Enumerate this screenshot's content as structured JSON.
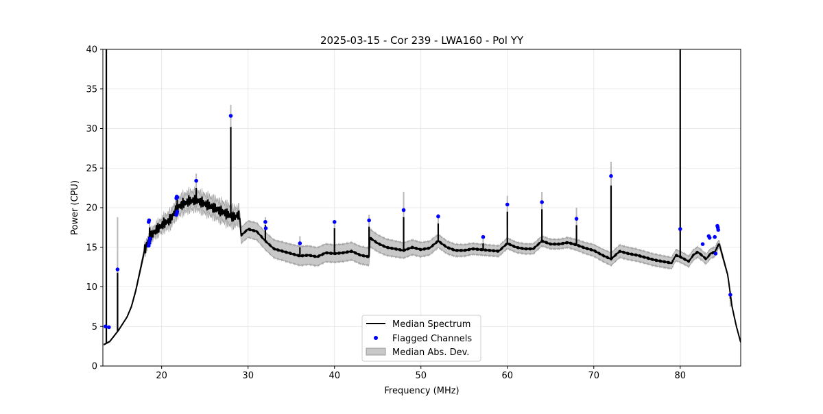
{
  "chart_data": {
    "type": "line",
    "title": "2025-03-15 - Cor 239 - LWA160 - Pol YY",
    "xlabel": "Frequency (MHz)",
    "ylabel": "Power (CPU)",
    "xlim": [
      13.2,
      87.0
    ],
    "ylim": [
      0,
      40
    ],
    "xticks": [
      20,
      30,
      40,
      50,
      60,
      70,
      80
    ],
    "yticks": [
      0,
      5,
      10,
      15,
      20,
      25,
      30,
      35,
      40
    ],
    "grid": true,
    "legend_position": "lower-center",
    "legend": {
      "median_label": "Median Spectrum",
      "flagged_label": "Flagged Channels",
      "mad_label": "Median Abs. Dev."
    },
    "colors": {
      "median": "#000000",
      "flagged": "#0000ff",
      "mad_fill": "#c8c8c8",
      "mad_edge": "#999999"
    },
    "baseline": {
      "x": [
        13.3,
        14.0,
        15.0,
        16.0,
        16.5,
        17.0,
        17.5,
        18.0,
        18.5,
        19.0,
        19.5,
        20.0,
        20.5,
        21.0,
        21.5,
        22.0,
        23.0,
        24.0,
        25.0,
        26.0,
        27.0,
        27.9,
        28.5,
        29.0,
        29.2,
        30.0,
        31.0,
        32.0,
        33.0,
        34.0,
        35.0,
        36.0,
        37.0,
        38.0,
        39.0,
        40.0,
        41.0,
        42.0,
        43.0,
        44.0,
        44.1,
        45.0,
        46.0,
        47.0,
        48.0,
        49.0,
        50.0,
        51.0,
        52.0,
        53.0,
        54.0,
        55.0,
        56.0,
        57.0,
        58.0,
        59.0,
        60.0,
        61.0,
        62.0,
        63.0,
        64.0,
        65.0,
        66.0,
        67.0,
        68.0,
        69.0,
        70.0,
        71.0,
        72.0,
        73.0,
        74.0,
        75.0,
        76.0,
        77.0,
        78.0,
        79.0,
        79.5,
        80.0,
        80.5,
        81.0,
        81.5,
        82.0,
        82.5,
        83.0,
        83.5,
        84.0,
        84.5,
        85.0,
        85.5,
        86.0,
        86.5,
        87.0
      ],
      "y": [
        2.7,
        3.1,
        4.5,
        6.2,
        7.5,
        9.5,
        12.0,
        14.5,
        16.0,
        16.8,
        17.3,
        17.8,
        18.2,
        18.5,
        19.5,
        20.2,
        20.8,
        21.0,
        20.5,
        20.0,
        19.5,
        19.0,
        18.8,
        19.2,
        16.5,
        17.3,
        17.0,
        15.8,
        14.8,
        14.5,
        14.2,
        13.9,
        14.0,
        13.8,
        14.3,
        14.2,
        14.3,
        14.5,
        14.0,
        13.8,
        16.2,
        15.5,
        15.0,
        14.8,
        14.6,
        15.0,
        14.7,
        14.9,
        15.8,
        15.0,
        14.6,
        14.6,
        14.8,
        14.7,
        14.6,
        14.5,
        15.5,
        15.0,
        14.8,
        14.8,
        15.8,
        15.4,
        15.4,
        15.6,
        15.3,
        14.9,
        14.6,
        14.0,
        13.5,
        14.5,
        14.2,
        14.0,
        13.7,
        13.4,
        13.2,
        13.0,
        14.0,
        13.8,
        13.5,
        13.2,
        14.0,
        14.4,
        14.0,
        13.5,
        14.2,
        14.4,
        15.5,
        13.5,
        11.5,
        7.5,
        5.0,
        3.0
      ]
    },
    "mad_halfwidth": [
      [
        16.0,
        0.1
      ],
      [
        18.0,
        0.5
      ],
      [
        20.0,
        0.8
      ],
      [
        22.0,
        1.1
      ],
      [
        28.0,
        1.2
      ],
      [
        29.0,
        1.0
      ],
      [
        32.0,
        1.1
      ],
      [
        36.0,
        1.2
      ],
      [
        40.0,
        1.1
      ],
      [
        44.0,
        1.1
      ],
      [
        56.0,
        0.7
      ],
      [
        66.0,
        0.6
      ],
      [
        72.0,
        0.8
      ],
      [
        80.0,
        0.7
      ],
      [
        84.0,
        0.6
      ],
      [
        86.0,
        0.1
      ]
    ],
    "spikes": [
      {
        "x": 13.6,
        "peak": 40.0,
        "mad": 0.0
      },
      {
        "x": 14.9,
        "peak": 11.8,
        "mad": 7.0
      },
      {
        "x": 18.6,
        "peak": 17.5,
        "mad": 0.5
      },
      {
        "x": 21.8,
        "peak": 21.0,
        "mad": 0.5
      },
      {
        "x": 24.0,
        "peak": 22.5,
        "mad": 1.8
      },
      {
        "x": 28.0,
        "peak": 30.2,
        "mad": 2.8
      },
      {
        "x": 32.0,
        "peak": 17.8,
        "mad": 1.0
      },
      {
        "x": 36.0,
        "peak": 15.0,
        "mad": 1.4
      },
      {
        "x": 40.0,
        "peak": 17.4,
        "mad": 1.0
      },
      {
        "x": 44.0,
        "peak": 17.6,
        "mad": 1.5
      },
      {
        "x": 48.0,
        "peak": 18.8,
        "mad": 3.2
      },
      {
        "x": 52.0,
        "peak": 18.0,
        "mad": 1.2
      },
      {
        "x": 57.2,
        "peak": 15.5,
        "mad": 0.8
      },
      {
        "x": 60.0,
        "peak": 19.5,
        "mad": 2.0
      },
      {
        "x": 64.0,
        "peak": 19.8,
        "mad": 2.2
      },
      {
        "x": 68.0,
        "peak": 17.8,
        "mad": 2.2
      },
      {
        "x": 72.0,
        "peak": 22.8,
        "mad": 3.0
      },
      {
        "x": 80.0,
        "peak": 40.0,
        "mad": 0.0
      },
      {
        "x": 85.8,
        "peak": 8.5,
        "mad": 1.0
      }
    ],
    "flagged": {
      "x": [
        13.5,
        13.9,
        14.9,
        18.5,
        18.55,
        18.6,
        18.65,
        18.5,
        18.55,
        21.7,
        21.75,
        21.8,
        21.7,
        21.75,
        21.8,
        24.0,
        28.0,
        32.0,
        32.05,
        36.0,
        40.0,
        44.0,
        48.0,
        52.0,
        57.2,
        60.0,
        64.0,
        68.0,
        72.0,
        80.0,
        82.6,
        83.3,
        83.4,
        84.0,
        84.1,
        84.3,
        84.4,
        84.35,
        85.8
      ],
      "y": [
        5.0,
        4.9,
        12.2,
        15.2,
        15.5,
        15.8,
        16.1,
        18.2,
        18.4,
        21.2,
        21.4,
        21.3,
        19.1,
        19.3,
        19.5,
        23.4,
        31.6,
        18.2,
        17.4,
        15.5,
        18.2,
        18.4,
        19.7,
        18.9,
        16.3,
        20.4,
        20.7,
        18.6,
        24.0,
        17.3,
        15.4,
        16.4,
        16.2,
        16.3,
        14.2,
        17.7,
        17.2,
        17.5,
        9.0
      ]
    }
  }
}
